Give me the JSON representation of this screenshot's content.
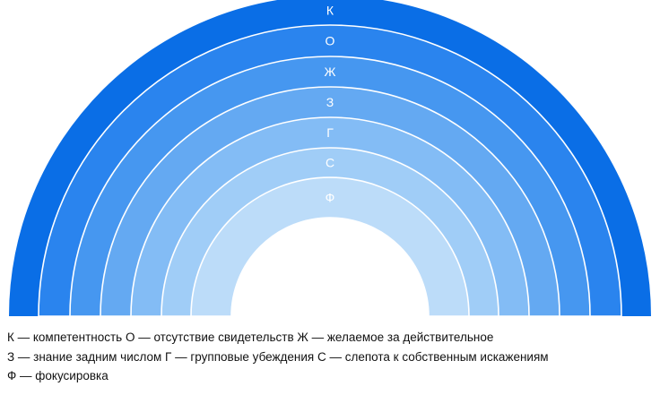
{
  "diagram": {
    "bands": [
      {
        "letter": "К",
        "color": "#0a6ee6"
      },
      {
        "letter": "О",
        "color": "#2a84ee"
      },
      {
        "letter": "Ж",
        "color": "#4697f0"
      },
      {
        "letter": "З",
        "color": "#64a9f2"
      },
      {
        "letter": "Г",
        "color": "#83bcf5"
      },
      {
        "letter": "С",
        "color": "#a0cdf7"
      },
      {
        "letter": "Ф",
        "color": "#bcdcf9"
      }
    ]
  },
  "legend": {
    "line1": "К — компетентность О — отсутствие свидетельств Ж — желаемое за действительное",
    "line2": "З — знание задним числом Г — групповые убеждения С — слепота к собственным искажениям",
    "line3": "Ф — фокусировка"
  }
}
